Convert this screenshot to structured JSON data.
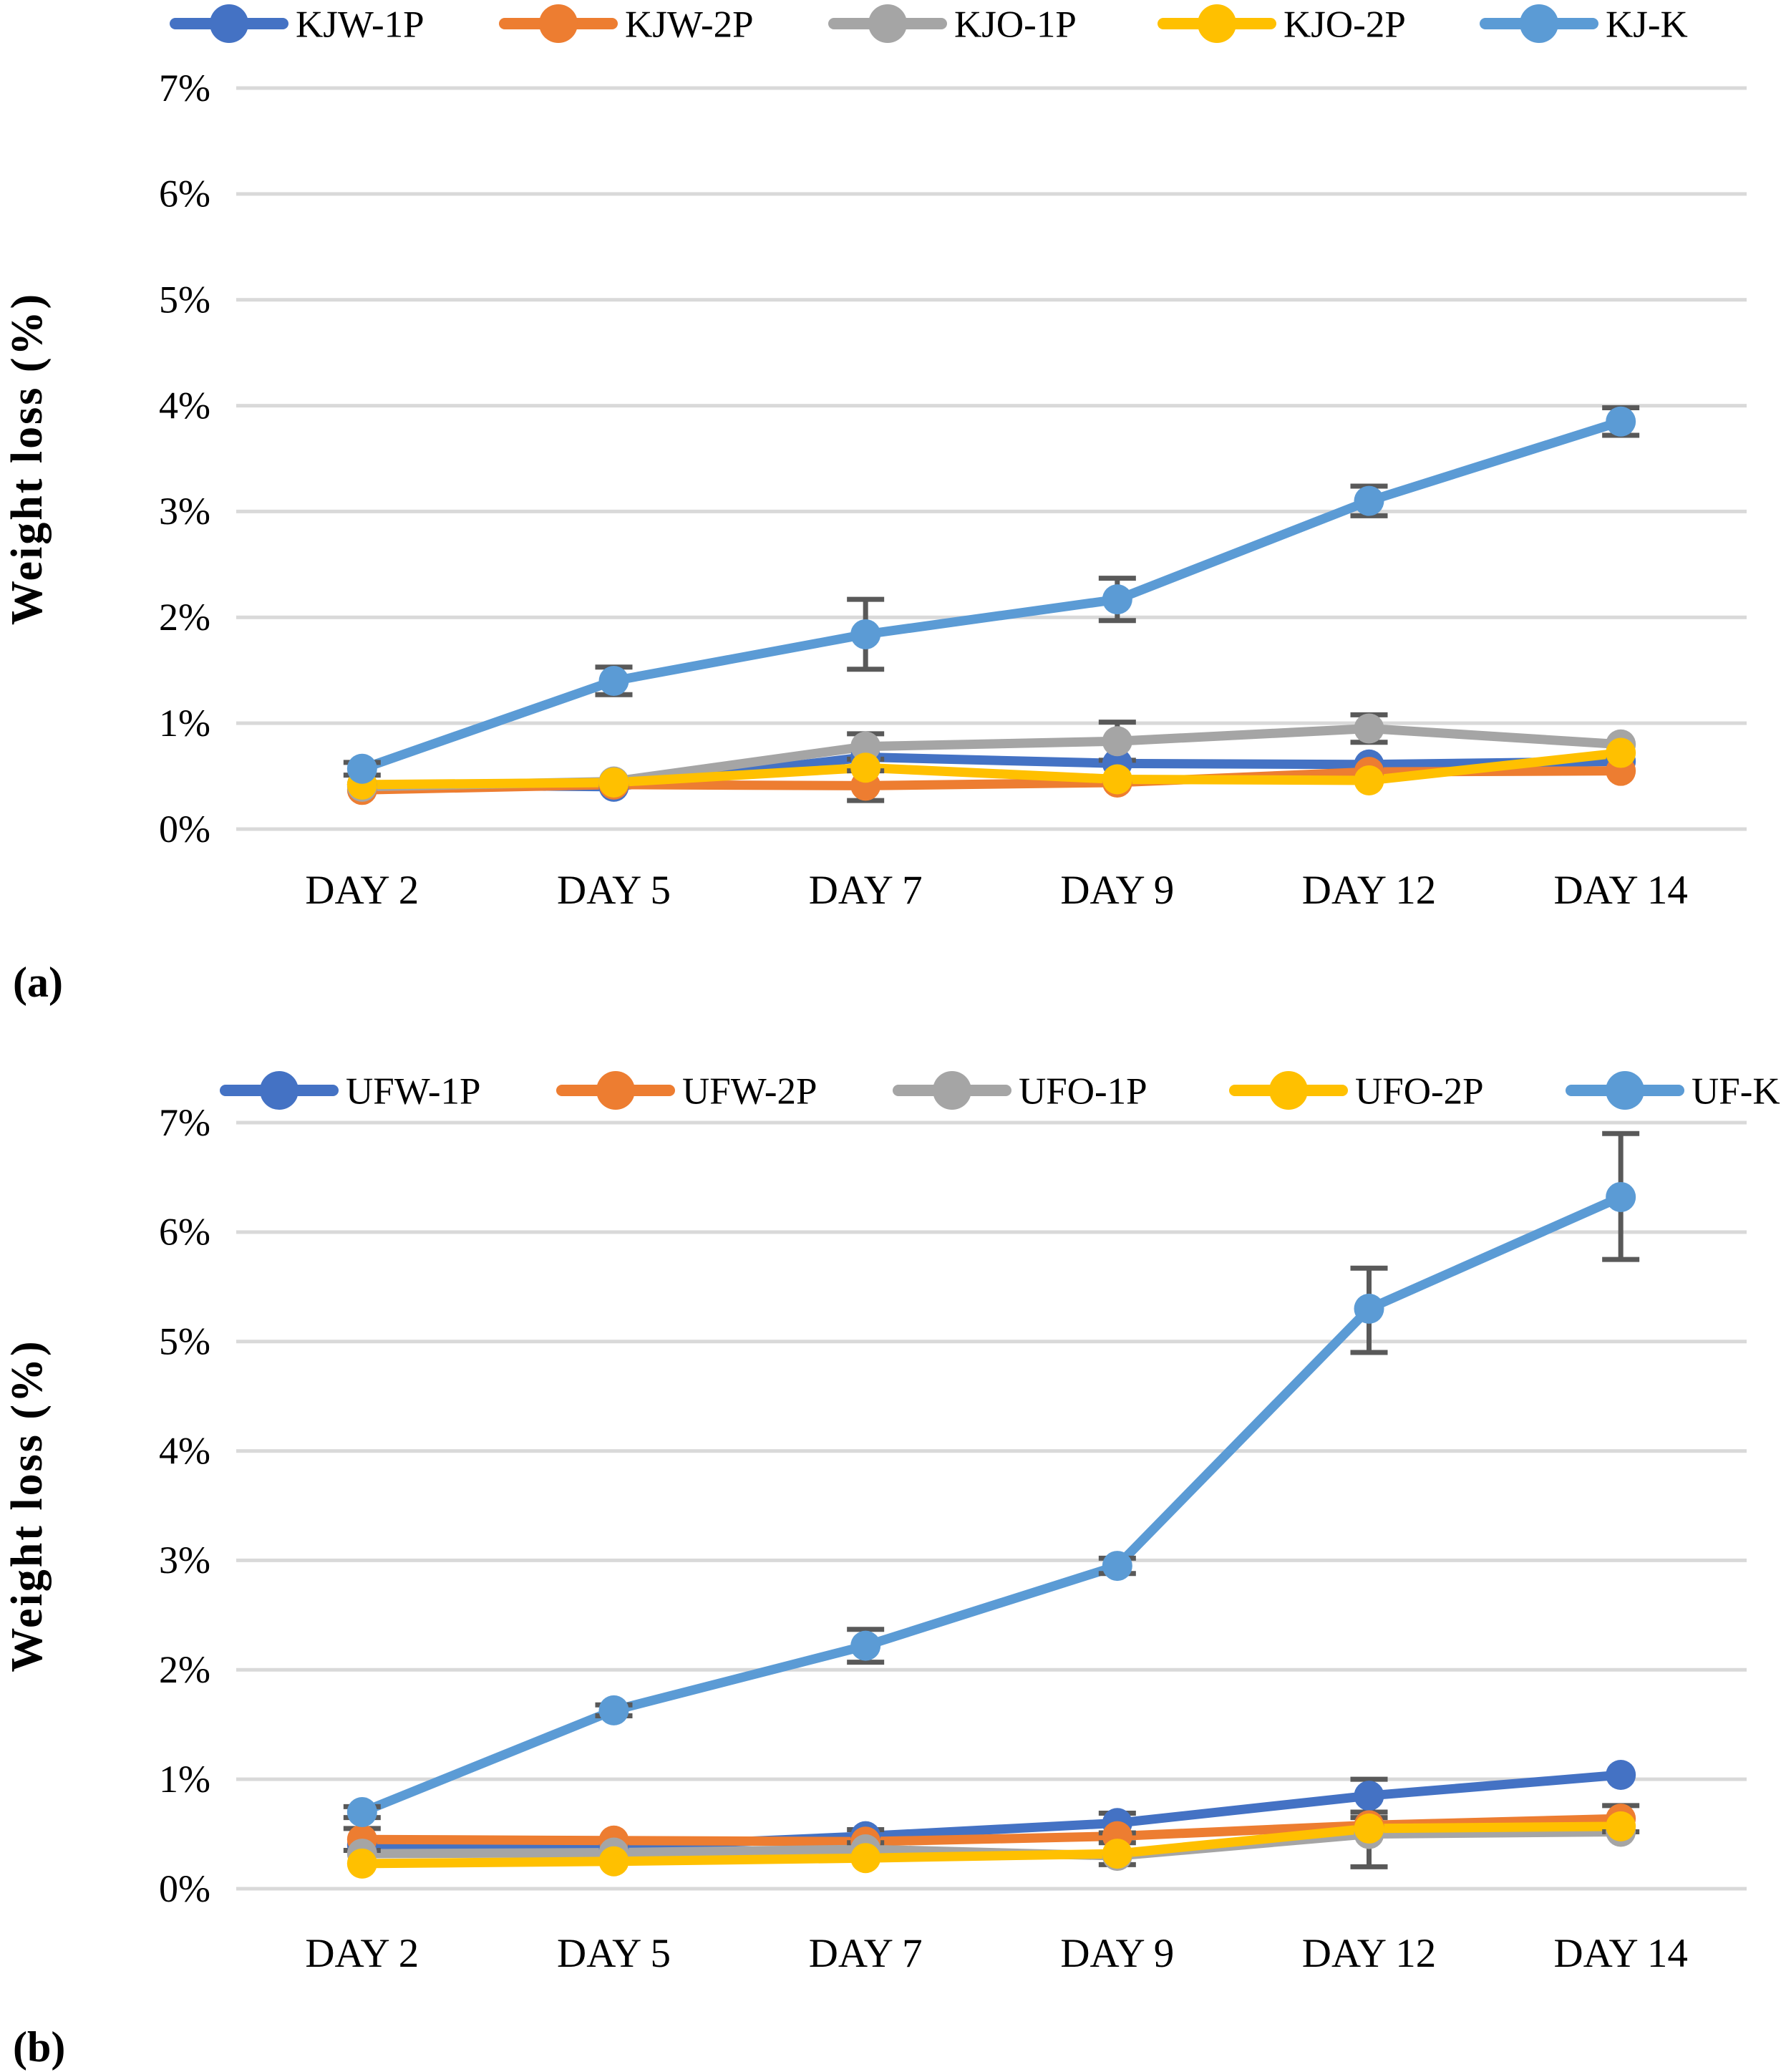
{
  "styles": {
    "gridline_color": "#D9D9D9",
    "error_bar_color": "#595959",
    "text_color": "#000000",
    "background_color": "#FFFFFF"
  },
  "chart_data": [
    {
      "type": "line",
      "caption": "(a)",
      "title": "",
      "xlabel": "",
      "ylabel": "Weight loss (%)",
      "ylim": [
        0,
        7
      ],
      "y_tick_labels": [
        "7%",
        "6%",
        "5%",
        "4%",
        "3%",
        "2%",
        "1%",
        "0%"
      ],
      "grid": true,
      "legend_position": "top",
      "categories": [
        "DAY 2",
        "DAY 5",
        "DAY 7",
        "DAY 9",
        "DAY 12",
        "DAY 14"
      ],
      "series": [
        {
          "name": "KJW-1P",
          "color": "#4472C4",
          "values": [
            0.42,
            0.4,
            0.68,
            0.62,
            0.61,
            0.64
          ],
          "errors": [
            null,
            null,
            null,
            null,
            null,
            null
          ]
        },
        {
          "name": "KJW-2P",
          "color": "#ED7D31",
          "values": [
            0.37,
            0.42,
            0.41,
            0.44,
            0.54,
            0.55
          ],
          "errors": [
            null,
            null,
            0.14,
            null,
            null,
            null
          ]
        },
        {
          "name": "KJO-1P",
          "color": "#A5A5A5",
          "values": [
            0.4,
            0.45,
            0.78,
            0.83,
            0.95,
            0.8
          ],
          "errors": [
            null,
            null,
            0.12,
            0.18,
            0.13,
            null
          ]
        },
        {
          "name": "KJO-2P",
          "color": "#FFC000",
          "values": [
            0.42,
            0.44,
            0.58,
            0.47,
            0.46,
            0.72
          ],
          "errors": [
            null,
            null,
            null,
            null,
            null,
            null
          ]
        },
        {
          "name": "KJ-K",
          "color": "#5B9BD5",
          "values": [
            0.57,
            1.4,
            1.84,
            2.17,
            3.1,
            3.85
          ],
          "errors": [
            0.06,
            0.13,
            0.33,
            0.2,
            0.14,
            0.13
          ]
        }
      ]
    },
    {
      "type": "line",
      "caption": "(b)",
      "title": "",
      "xlabel": "",
      "ylabel": "Weight loss (%)",
      "ylim": [
        0,
        7
      ],
      "y_tick_labels": [
        "7%",
        "6%",
        "5%",
        "4%",
        "3%",
        "2%",
        "1%",
        "0%"
      ],
      "grid": true,
      "legend_position": "top",
      "categories": [
        "DAY 2",
        "DAY 5",
        "DAY 7",
        "DAY 9",
        "DAY 12",
        "DAY 14"
      ],
      "series": [
        {
          "name": "UFW-1P",
          "color": "#4472C4",
          "values": [
            0.4,
            0.38,
            0.48,
            0.6,
            0.85,
            1.04
          ],
          "errors": [
            null,
            null,
            0.06,
            0.09,
            0.15,
            null
          ]
        },
        {
          "name": "UFW-2P",
          "color": "#ED7D31",
          "values": [
            0.45,
            0.44,
            0.43,
            0.48,
            0.58,
            0.64
          ],
          "errors": [
            0.1,
            null,
            null,
            null,
            null,
            0.12
          ]
        },
        {
          "name": "UFO-1P",
          "color": "#A5A5A5",
          "values": [
            0.32,
            0.33,
            0.36,
            0.3,
            0.5,
            0.52
          ],
          "errors": [
            null,
            null,
            null,
            null,
            null,
            null
          ]
        },
        {
          "name": "UFO-2P",
          "color": "#FFC000",
          "values": [
            0.23,
            0.25,
            0.28,
            0.32,
            0.55,
            0.57
          ],
          "errors": [
            null,
            null,
            null,
            0.1,
            [
              0.1,
              0.35
            ],
            null
          ]
        },
        {
          "name": "UF-K",
          "color": "#5B9BD5",
          "values": [
            0.7,
            1.63,
            2.22,
            2.95,
            5.3,
            6.32
          ],
          "errors": [
            0.05,
            0.05,
            0.15,
            0.07,
            [
              0.37,
              0.4
            ],
            [
              0.58,
              0.57
            ]
          ]
        }
      ]
    }
  ]
}
